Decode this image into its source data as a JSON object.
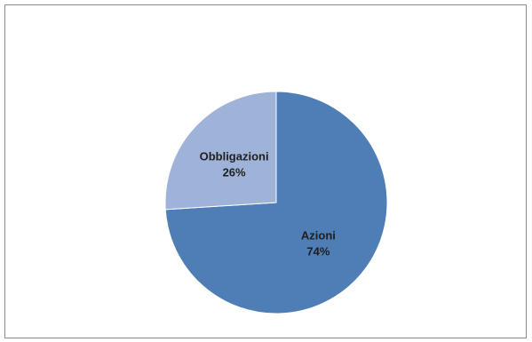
{
  "chart_data": {
    "type": "pie",
    "slices": [
      {
        "label": "Azioni",
        "value": 74,
        "value_label": "74%",
        "color": "#4f7db6"
      },
      {
        "label": "Obbligazioni",
        "value": 26,
        "value_label": "26%",
        "color": "#9fb3d9"
      }
    ],
    "start_angle": "12 o'clock",
    "direction": "clockwise",
    "legend": "none",
    "labels_inside_slices": true
  }
}
